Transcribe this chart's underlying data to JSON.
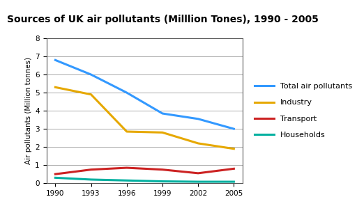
{
  "title": "Sources of UK air pollutants (Milllion Tones), 1990 - 2005",
  "ylabel": "Air pollutants (Million tonnes)",
  "years": [
    1990,
    1993,
    1996,
    1999,
    2002,
    2005
  ],
  "series": {
    "Total air pollutants": {
      "values": [
        6.8,
        6.0,
        5.0,
        3.85,
        3.55,
        3.0
      ],
      "color": "#3399ff",
      "linewidth": 2.2
    },
    "Industry": {
      "values": [
        5.3,
        4.9,
        2.85,
        2.8,
        2.2,
        1.9
      ],
      "color": "#e6a800",
      "linewidth": 2.2
    },
    "Transport": {
      "values": [
        0.5,
        0.75,
        0.85,
        0.75,
        0.55,
        0.8
      ],
      "color": "#cc2222",
      "linewidth": 2.2
    },
    "Households": {
      "values": [
        0.3,
        0.2,
        0.15,
        0.1,
        0.08,
        0.08
      ],
      "color": "#00b0a0",
      "linewidth": 2.2
    }
  },
  "ylim": [
    0,
    8
  ],
  "yticks": [
    0,
    1,
    2,
    3,
    4,
    5,
    6,
    7,
    8
  ],
  "background_color": "#ffffff",
  "plot_bg_color": "#ffffff",
  "title_fontsize": 10,
  "axis_label_fontsize": 7.5,
  "tick_fontsize": 7.5,
  "legend_fontsize": 8,
  "grid_color": "#888888",
  "grid_linewidth": 0.5
}
